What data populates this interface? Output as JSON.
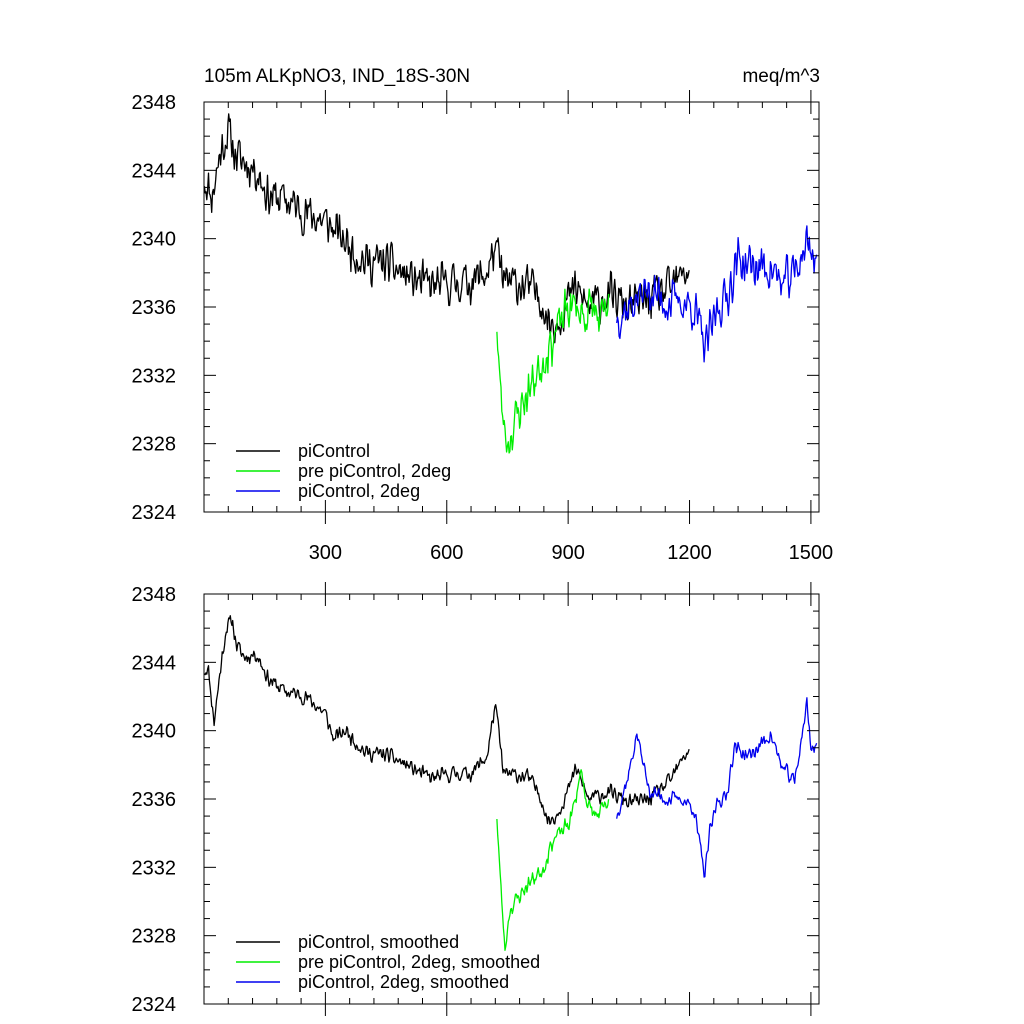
{
  "header": {
    "title_left": "105m ALKpNO3, IND_18S-30N",
    "title_right": "meq/m^3"
  },
  "colors": {
    "black": "#000000",
    "green": "#00ee00",
    "blue": "#0000ee"
  },
  "chart_data": [
    {
      "type": "line",
      "panel": "top",
      "xlim": [
        0,
        1520
      ],
      "ylim": [
        2324,
        2348
      ],
      "xticks": [
        300,
        600,
        900,
        1200,
        1500
      ],
      "xtick_labels": [
        "300",
        "600",
        "900",
        "1200",
        "1500"
      ],
      "yticks": [
        2324,
        2328,
        2332,
        2336,
        2340,
        2344,
        2348
      ],
      "ytick_labels": [
        "2324",
        "2328",
        "2332",
        "2336",
        "2340",
        "2344",
        "2348"
      ],
      "legend_position": "bottom-left",
      "series": [
        {
          "name": "piControl",
          "color": "#000000",
          "x_range": [
            1,
            1200
          ],
          "noise": 1.5,
          "seed": 11,
          "keypoints": [
            [
              1,
              2343.5
            ],
            [
              20,
              2342.5
            ],
            [
              40,
              2345
            ],
            [
              60,
              2346.3
            ],
            [
              80,
              2344.8
            ],
            [
              100,
              2344.5
            ],
            [
              130,
              2344
            ],
            [
              160,
              2342.5
            ],
            [
              200,
              2342.3
            ],
            [
              250,
              2341.5
            ],
            [
              300,
              2341
            ],
            [
              350,
              2339.8
            ],
            [
              400,
              2338.6
            ],
            [
              450,
              2338.6
            ],
            [
              500,
              2337.8
            ],
            [
              560,
              2337.2
            ],
            [
              620,
              2337.4
            ],
            [
              660,
              2337.5
            ],
            [
              700,
              2338
            ],
            [
              720,
              2339.5
            ],
            [
              740,
              2337.5
            ],
            [
              800,
              2337.2
            ],
            [
              830,
              2336.7
            ],
            [
              850,
              2335.2
            ],
            [
              870,
              2335
            ],
            [
              900,
              2336.5
            ],
            [
              920,
              2337
            ],
            [
              950,
              2336
            ],
            [
              1000,
              2336.7
            ],
            [
              1050,
              2336
            ],
            [
              1100,
              2336.5
            ],
            [
              1150,
              2337
            ],
            [
              1200,
              2338.3
            ]
          ]
        },
        {
          "name": "pre piControl, 2deg",
          "color": "#00ee00",
          "x_range": [
            724,
            1000
          ],
          "noise": 1.6,
          "seed": 23,
          "keypoints": [
            [
              724,
              2335
            ],
            [
              735,
              2330
            ],
            [
              750,
              2328
            ],
            [
              765,
              2329
            ],
            [
              780,
              2330
            ],
            [
              800,
              2331
            ],
            [
              820,
              2332
            ],
            [
              840,
              2333
            ],
            [
              860,
              2334
            ],
            [
              880,
              2335
            ],
            [
              900,
              2336
            ],
            [
              920,
              2336
            ],
            [
              940,
              2335.5
            ],
            [
              960,
              2336
            ],
            [
              980,
              2335
            ],
            [
              1000,
              2336
            ]
          ]
        },
        {
          "name": "piControl, 2deg",
          "color": "#0000ee",
          "x_range": [
            1020,
            1515
          ],
          "noise": 1.6,
          "seed": 37,
          "keypoints": [
            [
              1020,
              2335.5
            ],
            [
              1050,
              2336
            ],
            [
              1080,
              2336.7
            ],
            [
              1100,
              2337
            ],
            [
              1140,
              2336.3
            ],
            [
              1180,
              2336.3
            ],
            [
              1210,
              2336
            ],
            [
              1240,
              2333.5
            ],
            [
              1270,
              2336
            ],
            [
              1290,
              2336.5
            ],
            [
              1320,
              2338.8
            ],
            [
              1360,
              2338.3
            ],
            [
              1400,
              2338.3
            ],
            [
              1430,
              2337.3
            ],
            [
              1460,
              2338
            ],
            [
              1490,
              2339.8
            ],
            [
              1515,
              2338.8
            ]
          ]
        }
      ]
    },
    {
      "type": "line",
      "panel": "bottom",
      "xlim": [
        0,
        1520
      ],
      "ylim": [
        2324,
        2348
      ],
      "xticks": [
        300,
        600,
        900,
        1200,
        1500
      ],
      "yticks": [
        2324,
        2328,
        2332,
        2336,
        2340,
        2344,
        2348
      ],
      "ytick_labels": [
        "2324",
        "2328",
        "2332",
        "2336",
        "2340",
        "2344",
        "2348"
      ],
      "legend_position": "bottom-left",
      "series": [
        {
          "name": "piControl, smoothed",
          "color": "#000000",
          "x_range": [
            1,
            1200
          ],
          "noise": 0.55,
          "seed": 11,
          "keypoints": [
            [
              1,
              2343.5
            ],
            [
              10,
              2343.7
            ],
            [
              25,
              2340.5
            ],
            [
              40,
              2343.5
            ],
            [
              55,
              2346
            ],
            [
              70,
              2346.5
            ],
            [
              80,
              2345
            ],
            [
              100,
              2344.3
            ],
            [
              130,
              2344.5
            ],
            [
              160,
              2343
            ],
            [
              200,
              2342.3
            ],
            [
              250,
              2342
            ],
            [
              300,
              2341
            ],
            [
              320,
              2339.5
            ],
            [
              350,
              2340
            ],
            [
              400,
              2338.7
            ],
            [
              450,
              2338.6
            ],
            [
              500,
              2338
            ],
            [
              560,
              2337.2
            ],
            [
              620,
              2337.5
            ],
            [
              660,
              2337.5
            ],
            [
              700,
              2338.5
            ],
            [
              720,
              2341.6
            ],
            [
              740,
              2337.5
            ],
            [
              800,
              2337.3
            ],
            [
              830,
              2336.3
            ],
            [
              850,
              2334.7
            ],
            [
              870,
              2335
            ],
            [
              900,
              2336.5
            ],
            [
              920,
              2337.8
            ],
            [
              950,
              2336
            ],
            [
              1000,
              2336.4
            ],
            [
              1050,
              2335.8
            ],
            [
              1100,
              2336
            ],
            [
              1150,
              2337
            ],
            [
              1200,
              2339
            ]
          ]
        },
        {
          "name": "pre piControl, 2deg, smoothed",
          "color": "#00ee00",
          "x_range": [
            724,
            1000
          ],
          "noise": 0.6,
          "seed": 23,
          "keypoints": [
            [
              724,
              2335
            ],
            [
              733,
              2331
            ],
            [
              744,
              2327.1
            ],
            [
              755,
              2329.5
            ],
            [
              770,
              2330
            ],
            [
              785,
              2330.5
            ],
            [
              800,
              2331
            ],
            [
              820,
              2331.5
            ],
            [
              840,
              2332
            ],
            [
              860,
              2333.5
            ],
            [
              880,
              2334
            ],
            [
              900,
              2334.5
            ],
            [
              920,
              2336
            ],
            [
              930,
              2337.8
            ],
            [
              950,
              2335.5
            ],
            [
              970,
              2335
            ],
            [
              1000,
              2335.7
            ]
          ]
        },
        {
          "name": "piControl, 2deg, smoothed",
          "color": "#0000ee",
          "x_range": [
            1020,
            1515
          ],
          "noise": 0.55,
          "seed": 37,
          "keypoints": [
            [
              1020,
              2335
            ],
            [
              1050,
              2337.5
            ],
            [
              1070,
              2339.8
            ],
            [
              1100,
              2336.5
            ],
            [
              1140,
              2336
            ],
            [
              1180,
              2336
            ],
            [
              1210,
              2335.5
            ],
            [
              1238,
              2331.5
            ],
            [
              1250,
              2334
            ],
            [
              1270,
              2336
            ],
            [
              1290,
              2336
            ],
            [
              1310,
              2339
            ],
            [
              1350,
              2338.5
            ],
            [
              1400,
              2339.8
            ],
            [
              1430,
              2337.8
            ],
            [
              1460,
              2337
            ],
            [
              1490,
              2341.6
            ],
            [
              1500,
              2339
            ],
            [
              1515,
              2339.2
            ]
          ]
        }
      ]
    }
  ]
}
